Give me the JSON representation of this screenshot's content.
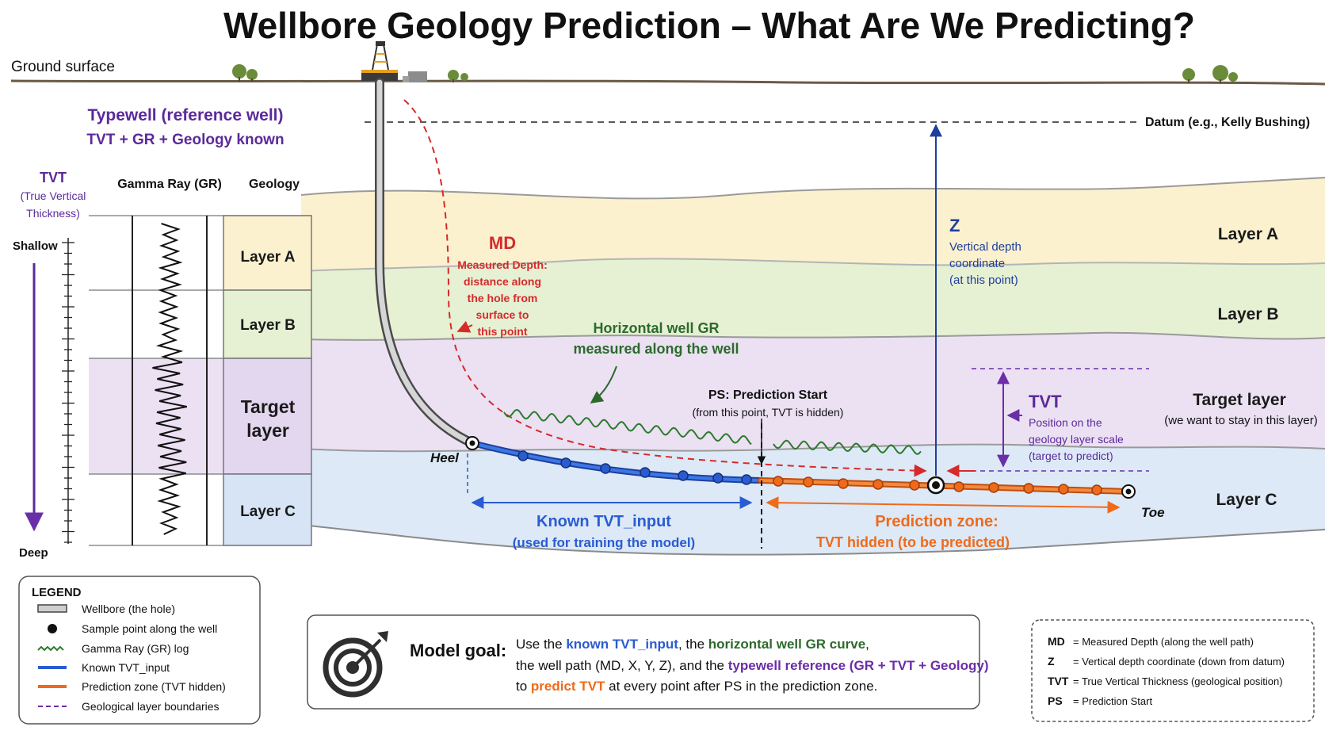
{
  "title": "Wellbore Geology Prediction – What Are We Predicting?",
  "ground_surface": "Ground surface",
  "datum": "Datum (e.g., Kelly Bushing)",
  "typewell": {
    "title": "Typewell (reference well)",
    "subtitle": "TVT + GR + Geology known",
    "tvt_header": [
      "TVT",
      "(True Vertical",
      "Thickness)"
    ],
    "gr_header": "Gamma Ray (GR)",
    "geology_header": "Geology",
    "shallow": "Shallow",
    "deep": "Deep",
    "layers": [
      "Layer A",
      "Layer B",
      "Target",
      "layer",
      "Layer C"
    ]
  },
  "md_annotation": {
    "title": "MD",
    "lines": [
      "Measured Depth:",
      "distance along",
      "the hole from",
      "surface to",
      "this point"
    ]
  },
  "gr_annotation": [
    "Horizontal well GR",
    "measured along the well"
  ],
  "ps_annotation": [
    "PS: Prediction Start",
    "(from this point, TVT is hidden)"
  ],
  "z_annotation": {
    "title": "Z",
    "lines": [
      "Vertical depth",
      "coordinate",
      "(at this point)"
    ]
  },
  "tvt_annotation": {
    "title": "TVT",
    "lines": [
      "Position on the",
      "geology layer scale",
      "(target to predict)"
    ]
  },
  "right_layers": {
    "a": "Layer A",
    "b": "Layer B",
    "target": "Target layer",
    "target_sub": "(we want to stay in this layer)",
    "c": "Layer C"
  },
  "heel": "Heel",
  "toe": "Toe",
  "known_zone": [
    "Known TVT_input",
    "(used for training the model)"
  ],
  "prediction_zone": [
    "Prediction zone:",
    "TVT hidden (to be predicted)"
  ],
  "legend": {
    "title": "LEGEND",
    "items": [
      "Wellbore (the hole)",
      "Sample point along the well",
      "Gamma Ray (GR) log",
      "Known TVT_input",
      "Prediction zone (TVT hidden)",
      "Geological layer boundaries"
    ]
  },
  "model_goal": {
    "label": "Model goal:",
    "line1": [
      "Use the ",
      "known TVT_input",
      ", the ",
      "horizontal well GR curve",
      ","
    ],
    "line2": [
      "the well path (MD, X, Y, Z), and the ",
      "typewell reference (GR + TVT + Geology)"
    ],
    "line3": [
      "to ",
      "predict TVT",
      " at every point after PS in the prediction zone."
    ]
  },
  "abbreviations": [
    {
      "abbr": "MD",
      "desc": "= Measured Depth (along the well path)"
    },
    {
      "abbr": "Z",
      "desc": "= Vertical depth coordinate (down from datum)"
    },
    {
      "abbr": "TVT",
      "desc": "= True Vertical Thickness (geological position)"
    },
    {
      "abbr": "PS",
      "desc": "= Prediction Start"
    }
  ],
  "colors": {
    "layer_a": "#fbf1cf",
    "layer_b": "#e6f0d3",
    "target": "#ebe1f3",
    "layer_c": "#dde9f7",
    "known": "#2a5bd0",
    "prediction": "#ef6a1a",
    "md": "#d62a2a",
    "z": "#1f3f9e",
    "tvt": "#6a2ea8",
    "gr": "#2c7a2c"
  }
}
